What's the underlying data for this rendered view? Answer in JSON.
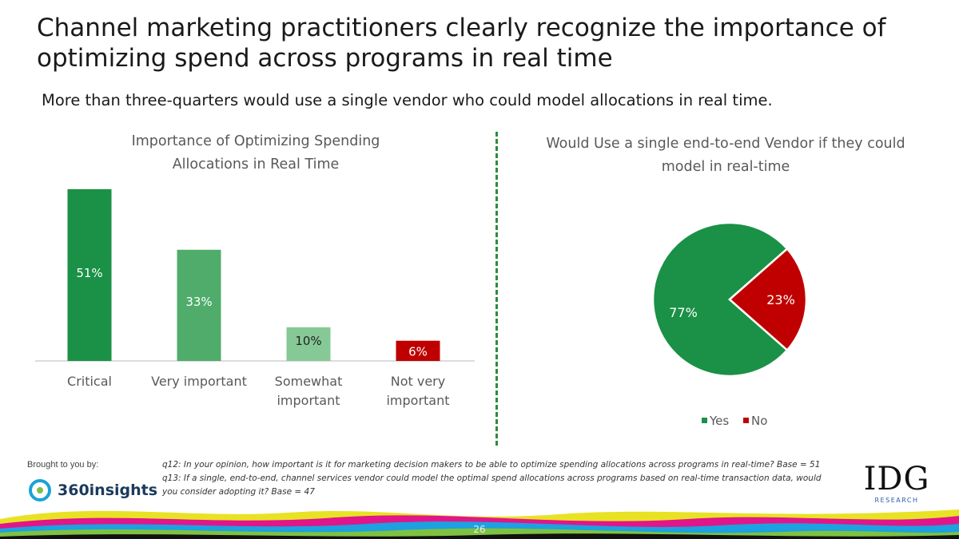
{
  "slide": {
    "title": "Channel marketing practitioners clearly recognize the importance of optimizing spend across programs in real time",
    "subtitle": "More than three-quarters would use a single vendor who could model allocations in real time.",
    "page_number": "26"
  },
  "chart_data": [
    {
      "type": "bar",
      "title": "Importance of Optimizing Spending Allocations in Real Time",
      "categories": [
        "Critical",
        "Very important",
        "Somewhat important",
        "Not very important"
      ],
      "values": [
        51,
        33,
        10,
        6
      ],
      "value_labels": [
        "51%",
        "33%",
        "10%",
        "6%"
      ],
      "colors": [
        "#1a9146",
        "#4fac6a",
        "#86c996",
        "#c00000"
      ],
      "ylim": [
        0,
        55
      ],
      "xlabel": "",
      "ylabel": ""
    },
    {
      "type": "pie",
      "title": "Would Use a single end-to-end Vendor if they could model in real-time",
      "labels": [
        "Yes",
        "No"
      ],
      "values": [
        77,
        23
      ],
      "value_labels": [
        "77%",
        "23%"
      ],
      "colors": [
        "#1a9146",
        "#c00000"
      ],
      "legend": "bottom"
    }
  ],
  "footer": {
    "brought_by": "Brought to you by:",
    "sponsor_logo": "360insights",
    "note_q12": "q12: In your opinion, how important is it for marketing decision makers to be able to optimize spending allocations across programs in real-time? Base = 51",
    "note_q13": "q13: If a single, end-to-end, channel services vendor could model the optimal spend allocations across programs based on real-time transaction data, would you consider adopting it? Base = 47",
    "brand_logo": "IDG",
    "brand_sub": "RESEARCH"
  }
}
